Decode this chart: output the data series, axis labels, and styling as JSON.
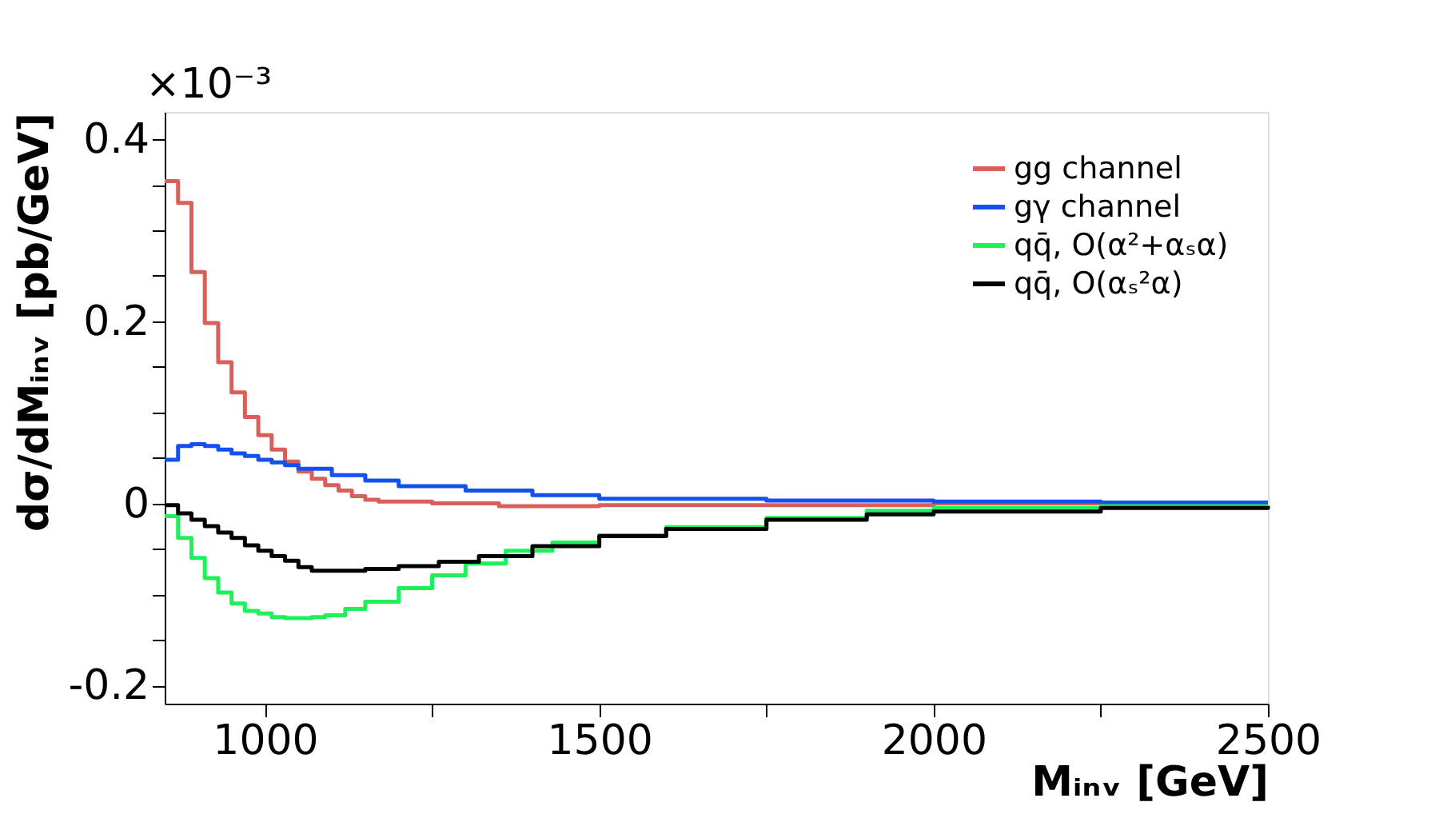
{
  "chart_data": {
    "type": "step",
    "xlabel": "Mᵢₙᵥ [GeV]",
    "ylabel": "dσ/dMᵢₙᵥ [pb/GeV]",
    "annotations": [
      "×10⁻³"
    ],
    "xlim": [
      850,
      2500
    ],
    "ylim": [
      -0.22,
      0.43
    ],
    "xticks": [
      1000,
      {
        "value": 1250,
        "label": null
      },
      1500,
      {
        "value": 1750,
        "label": null
      },
      2000,
      {
        "value": 2250,
        "label": null
      },
      2500
    ],
    "yticks": [
      {
        "value": -0.2,
        "label": "-0.2"
      },
      {
        "value": -0.15,
        "label": null
      },
      {
        "value": -0.1,
        "label": null
      },
      {
        "value": -0.05,
        "label": null
      },
      0,
      {
        "value": 0.05,
        "label": null
      },
      {
        "value": 0.1,
        "label": null
      },
      {
        "value": 0.15,
        "label": null
      },
      {
        "value": 0.2,
        "label": "0.2"
      },
      {
        "value": 0.25,
        "label": null
      },
      {
        "value": 0.3,
        "label": null
      },
      {
        "value": 0.35,
        "label": null
      },
      {
        "value": 0.4,
        "label": "0.4"
      }
    ],
    "grid": false,
    "legend": "top right",
    "line_style": "solid",
    "marker": "none",
    "series": [
      {
        "name": "gg channel",
        "color": "#d9605a",
        "x": [
          850,
          870,
          890,
          910,
          930,
          950,
          970,
          990,
          1010,
          1030,
          1050,
          1070,
          1090,
          1110,
          1130,
          1150,
          1170,
          1250,
          1350,
          1500,
          2000,
          2500
        ],
        "values": [
          0.354,
          0.33,
          0.254,
          0.198,
          0.155,
          0.122,
          0.095,
          0.075,
          0.059,
          0.046,
          0.035,
          0.027,
          0.02,
          0.014,
          0.008,
          0.004,
          0.002,
          0.0,
          -0.003,
          -0.002,
          0.0,
          0.0
        ]
      },
      {
        "name": "gγ channel",
        "color": "#1450f0",
        "x": [
          850,
          870,
          890,
          910,
          930,
          950,
          970,
          990,
          1010,
          1030,
          1050,
          1100,
          1150,
          1200,
          1300,
          1400,
          1500,
          1750,
          2000,
          2250,
          2500
        ],
        "values": [
          0.048,
          0.063,
          0.065,
          0.063,
          0.059,
          0.055,
          0.052,
          0.048,
          0.045,
          0.042,
          0.038,
          0.031,
          0.025,
          0.019,
          0.014,
          0.009,
          0.005,
          0.003,
          0.002,
          0.001,
          0.001
        ]
      },
      {
        "name": "qq̄, O(α²+αₛα)",
        "color": "#1ef05a",
        "x": [
          850,
          870,
          890,
          910,
          930,
          950,
          970,
          990,
          1010,
          1030,
          1050,
          1070,
          1090,
          1120,
          1150,
          1200,
          1250,
          1300,
          1360,
          1430,
          1500,
          1600,
          1750,
          1900,
          2000,
          2250,
          2500
        ],
        "values": [
          -0.014,
          -0.038,
          -0.06,
          -0.082,
          -0.098,
          -0.11,
          -0.118,
          -0.121,
          -0.125,
          -0.126,
          -0.126,
          -0.125,
          -0.123,
          -0.116,
          -0.108,
          -0.093,
          -0.079,
          -0.066,
          -0.052,
          -0.043,
          -0.035,
          -0.026,
          -0.016,
          -0.008,
          -0.005,
          -0.003,
          -0.002
        ]
      },
      {
        "name": "qq̄, O(αₛ²α)",
        "color": "#000000",
        "x": [
          850,
          870,
          890,
          910,
          930,
          950,
          970,
          990,
          1010,
          1030,
          1050,
          1070,
          1100,
          1150,
          1200,
          1260,
          1320,
          1400,
          1500,
          1600,
          1750,
          1900,
          2000,
          2250,
          2500
        ],
        "values": [
          -0.002,
          -0.011,
          -0.018,
          -0.025,
          -0.032,
          -0.038,
          -0.046,
          -0.052,
          -0.058,
          -0.063,
          -0.07,
          -0.074,
          -0.074,
          -0.072,
          -0.069,
          -0.064,
          -0.058,
          -0.047,
          -0.036,
          -0.028,
          -0.018,
          -0.012,
          -0.009,
          -0.005,
          -0.003
        ]
      }
    ]
  }
}
